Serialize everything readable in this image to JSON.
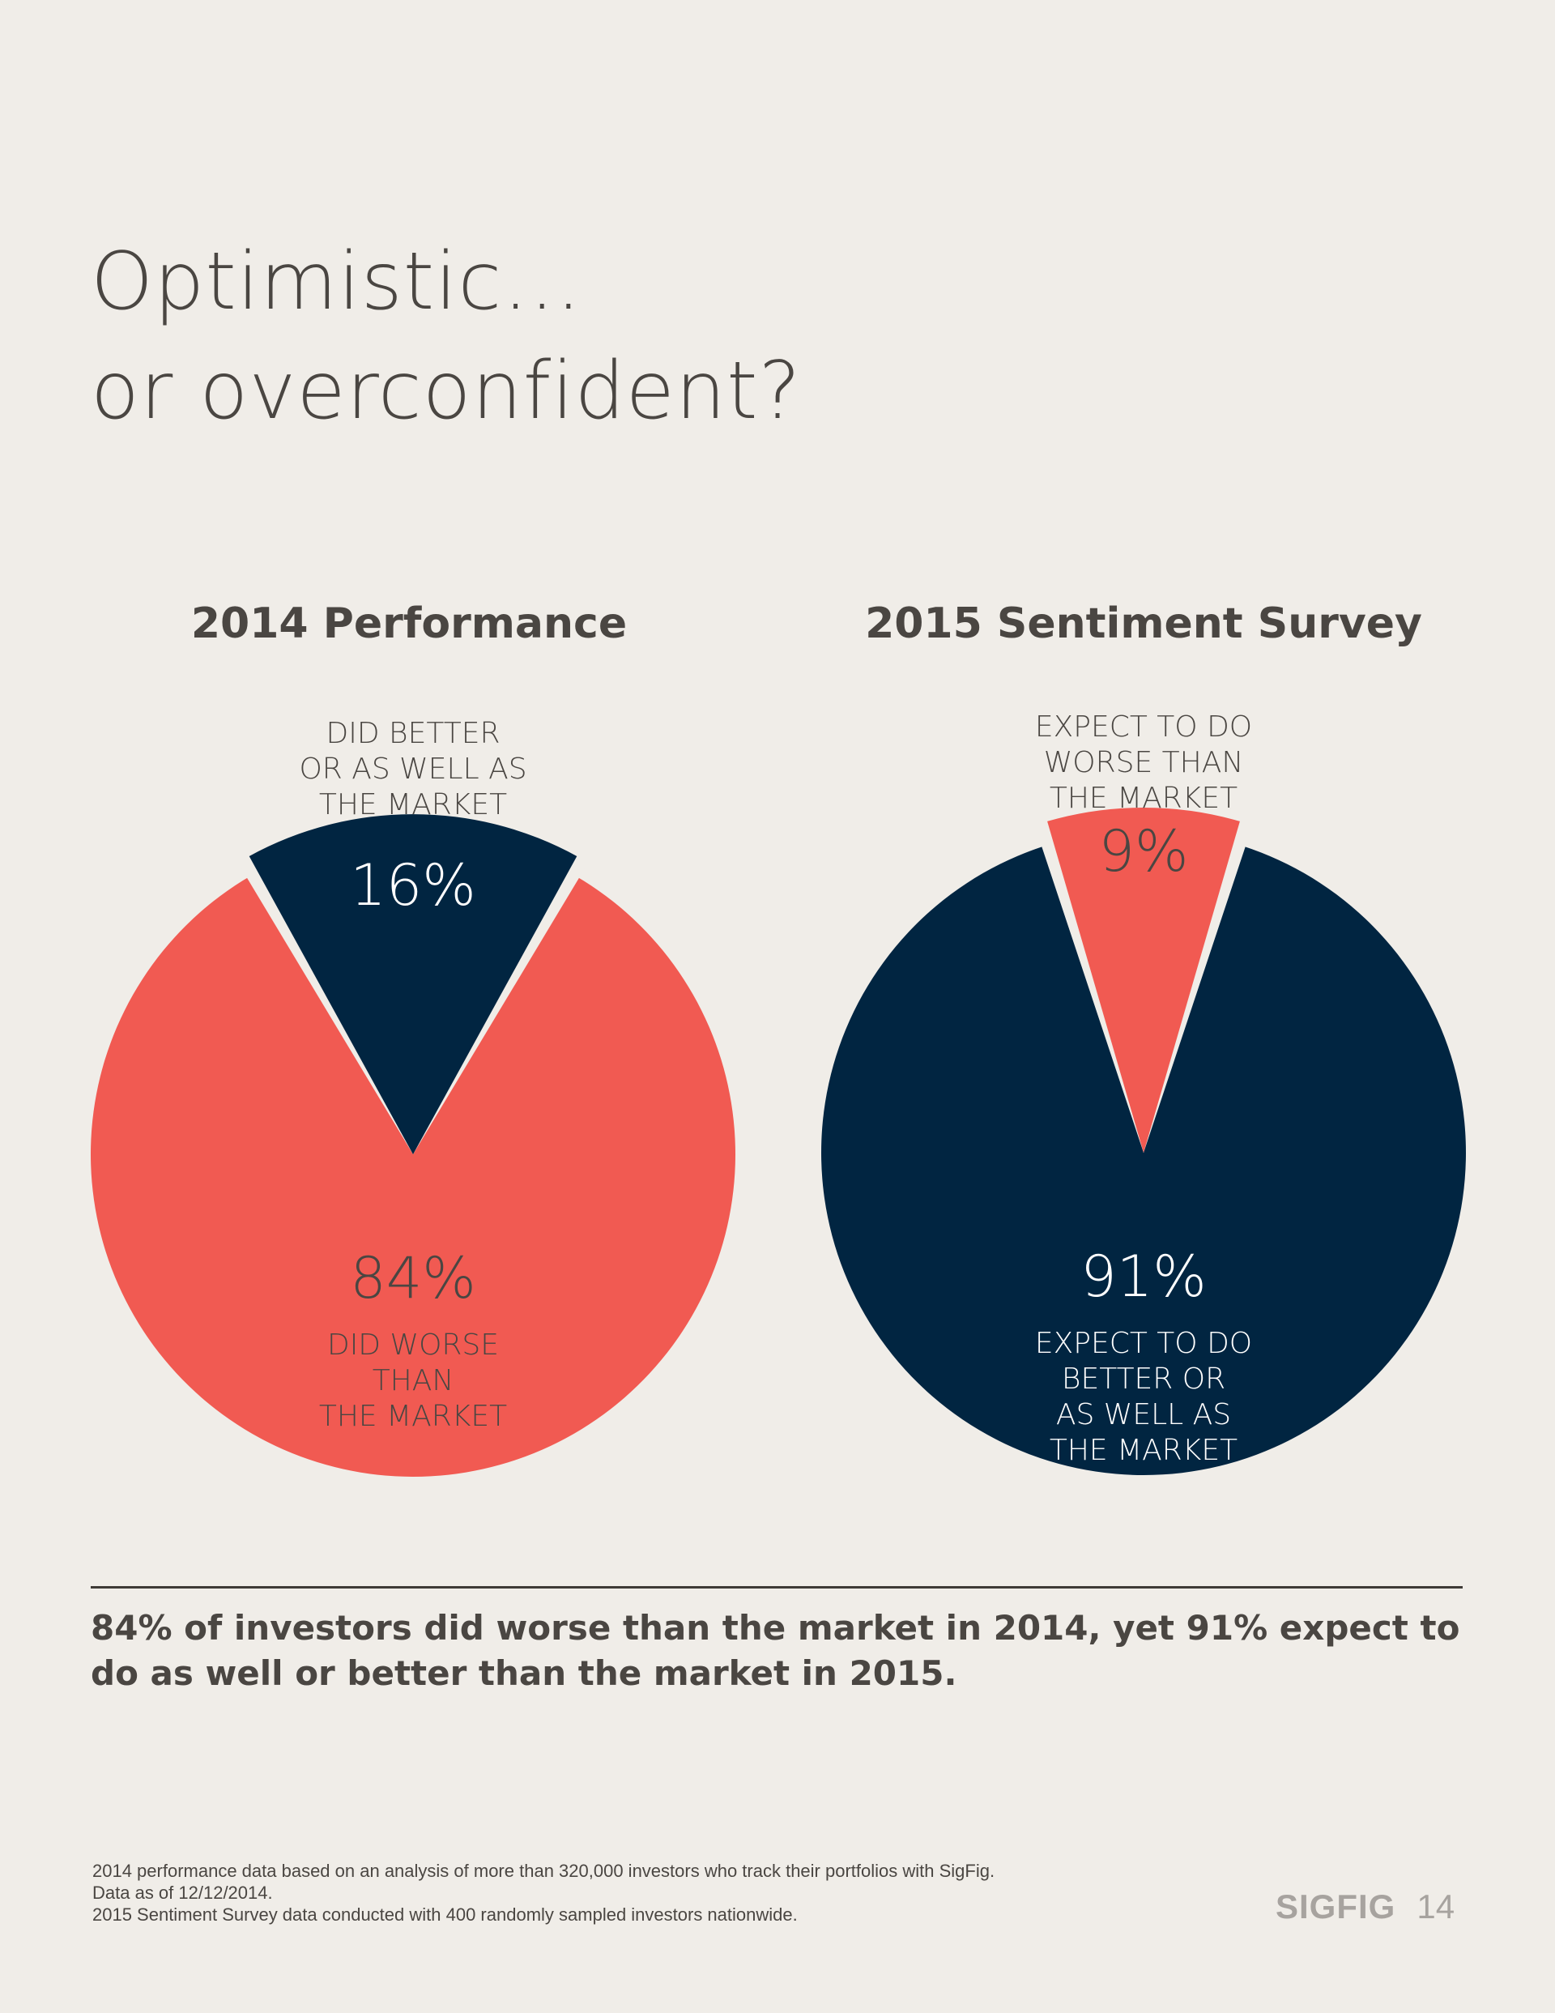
{
  "title": {
    "line1": "Optimistic…",
    "line2": "or overconfident?"
  },
  "colors": {
    "background": "#f0ede8",
    "coral": "#f15a52",
    "navy": "#012541",
    "text": "#4a4642",
    "muted": "#a7a39f"
  },
  "chart_data": [
    {
      "type": "pie",
      "title": "2014 Performance",
      "slices": [
        {
          "value": 16,
          "percent_label": "16%",
          "label_lines": [
            "DID BETTER",
            "OR AS WELL AS",
            "THE MARKET"
          ],
          "color": "#012541",
          "exploded": true
        },
        {
          "value": 84,
          "percent_label": "84%",
          "label_lines": [
            "DID WORSE",
            "THAN",
            "THE MARKET"
          ],
          "color": "#f15a52",
          "exploded": false
        }
      ]
    },
    {
      "type": "pie",
      "title": "2015 Sentiment Survey",
      "slices": [
        {
          "value": 9,
          "percent_label": "9%",
          "label_lines": [
            "EXPECT TO DO",
            "WORSE THAN",
            "THE MARKET"
          ],
          "color": "#f15a52",
          "exploded": true
        },
        {
          "value": 91,
          "percent_label": "91%",
          "label_lines": [
            "EXPECT TO DO",
            "BETTER OR",
            "AS WELL AS",
            "THE MARKET"
          ],
          "color": "#012541",
          "exploded": false
        }
      ]
    }
  ],
  "summary": "84% of investors did worse than the market in 2014, yet 91% expect to do as well or better than the market in 2015.",
  "footnotes": [
    "2014 performance data based on an analysis of more than 320,000 investors who track their portfolios with SigFig.",
    "Data as of 12/12/2014.",
    "2015 Sentiment Survey data conducted with 400 randomly sampled investors nationwide."
  ],
  "brand": {
    "name": "SIGFIG",
    "page_number": "14"
  }
}
